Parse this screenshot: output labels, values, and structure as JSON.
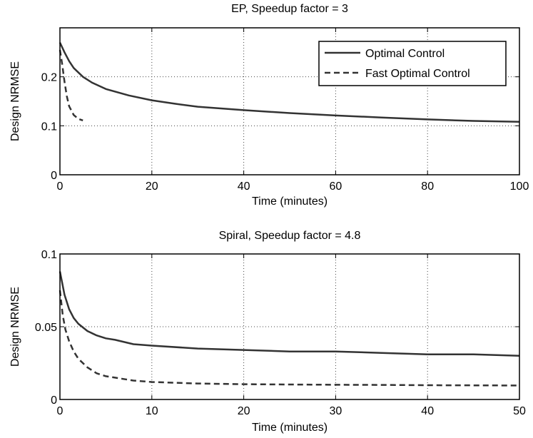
{
  "chart_data": [
    {
      "type": "line",
      "title": "EP, Speedup factor = 3",
      "xlabel": "Time (minutes)",
      "ylabel": "Design NRMSE",
      "xlim": [
        0,
        100
      ],
      "ylim": [
        0,
        0.3
      ],
      "xticks": [
        0,
        20,
        40,
        60,
        80,
        100
      ],
      "xtick_labels": [
        "0",
        "20",
        "40",
        "60",
        "80",
        "100"
      ],
      "yticks": [
        0,
        0.1,
        0.2
      ],
      "ytick_labels": [
        "0",
        "0.1",
        "0.2"
      ],
      "grid": true,
      "legend": "top-right",
      "series": [
        {
          "name": "Optimal Control",
          "style": "solid",
          "x": [
            0,
            1,
            2,
            3,
            5,
            7,
            10,
            15,
            20,
            25,
            30,
            40,
            50,
            60,
            70,
            80,
            90,
            100
          ],
          "y": [
            0.27,
            0.25,
            0.232,
            0.218,
            0.2,
            0.188,
            0.175,
            0.162,
            0.152,
            0.145,
            0.139,
            0.132,
            0.126,
            0.121,
            0.117,
            0.113,
            0.11,
            0.108
          ]
        },
        {
          "name": "Fast Optimal Control",
          "style": "dashed",
          "x": [
            0,
            0.5,
            1,
            1.5,
            2,
            3,
            4,
            5
          ],
          "y": [
            0.255,
            0.225,
            0.19,
            0.16,
            0.14,
            0.122,
            0.114,
            0.111
          ]
        }
      ]
    },
    {
      "type": "line",
      "title": "Spiral, Speedup factor = 4.8",
      "xlabel": "Time (minutes)",
      "ylabel": "Design NRMSE",
      "xlim": [
        0,
        50
      ],
      "ylim": [
        0,
        0.1
      ],
      "xticks": [
        0,
        10,
        20,
        30,
        40,
        50
      ],
      "xtick_labels": [
        "0",
        "10",
        "20",
        "30",
        "40",
        "50"
      ],
      "yticks": [
        0,
        0.05,
        0.1
      ],
      "ytick_labels": [
        "0",
        "0.05",
        "0.1"
      ],
      "grid": true,
      "series": [
        {
          "name": "Optimal Control",
          "style": "solid",
          "x": [
            0,
            0.5,
            1,
            1.5,
            2,
            3,
            4,
            5,
            6,
            8,
            10,
            15,
            20,
            25,
            30,
            35,
            40,
            45,
            50
          ],
          "y": [
            0.088,
            0.072,
            0.062,
            0.056,
            0.052,
            0.047,
            0.044,
            0.042,
            0.041,
            0.038,
            0.037,
            0.035,
            0.034,
            0.033,
            0.033,
            0.032,
            0.031,
            0.031,
            0.03
          ]
        },
        {
          "name": "Fast Optimal Control",
          "style": "dashed",
          "x": [
            0,
            0.3,
            0.6,
            1,
            1.5,
            2,
            3,
            4,
            5,
            6,
            8,
            10,
            15,
            20,
            25,
            30,
            35,
            40,
            45,
            50
          ],
          "y": [
            0.075,
            0.058,
            0.048,
            0.04,
            0.033,
            0.028,
            0.022,
            0.018,
            0.016,
            0.015,
            0.013,
            0.012,
            0.011,
            0.0105,
            0.0103,
            0.0101,
            0.01,
            0.0098,
            0.0097,
            0.0096
          ]
        }
      ]
    }
  ]
}
